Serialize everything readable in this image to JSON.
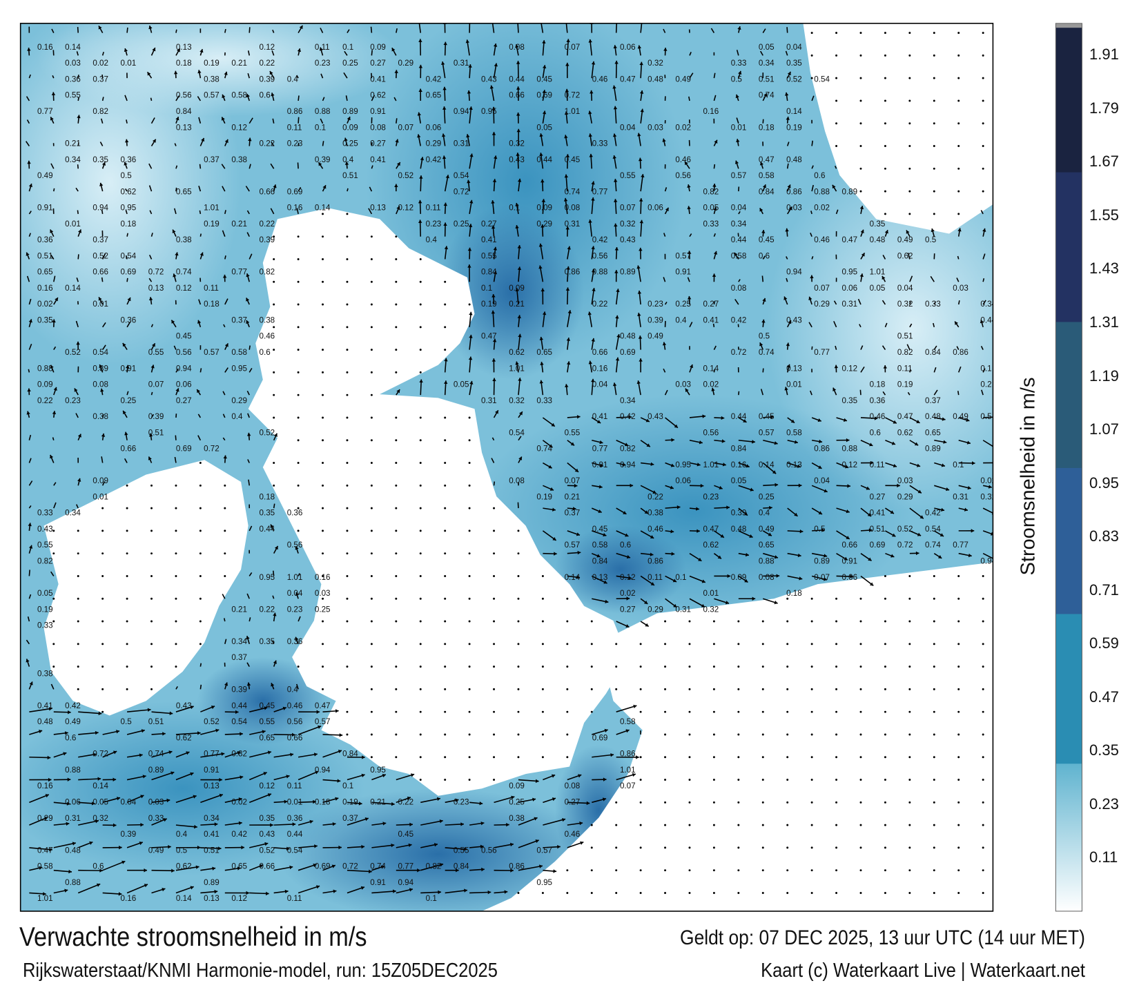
{
  "title": "Verwachte stroomsnelheid in m/s",
  "valid_time": "Geldt op: 07 DEC 2025, 13 uur UTC (14 uur MET)",
  "source": "Rijkswaterstaat/KNMI Harmonie-model, run: 15Z05DEC2025",
  "credit": "Kaart (c) Waterkaart Live | Waterkaart.net",
  "colorbar": {
    "title": "Stroomsnelheid in m/s",
    "ticks": [
      "1.91",
      "1.79",
      "1.67",
      "1.55",
      "1.43",
      "1.31",
      "1.19",
      "1.07",
      "0.95",
      "0.83",
      "0.71",
      "0.59",
      "0.47",
      "0.35",
      "0.23",
      "0.11"
    ],
    "range": [
      0,
      1.97
    ],
    "colors": {
      "low": "#ffffff",
      "light": "#5fb3cf",
      "teal": "#2a8db3",
      "blue": "#2e5f98",
      "slate": "#2a5b78",
      "navy": "#233262",
      "dark": "#1a2340"
    }
  },
  "map": {
    "sea_color": "#7cc0da",
    "land_color": "#ffffff",
    "arrow_color": "#000000",
    "speed_labels": [
      "0.16",
      "0.14",
      "0.13",
      "0.12",
      "0.11",
      "0.1",
      "0.09",
      "0.08",
      "0.07",
      "0.06",
      "0.05",
      "0.04",
      "0.03",
      "0.02",
      "0.01",
      "0.18",
      "0.19",
      "0.21",
      "0.22",
      "0.23",
      "0.25",
      "0.27",
      "0.29",
      "0.31",
      "0.32",
      "0.33",
      "0.34",
      "0.35",
      "0.36",
      "0.37",
      "0.38",
      "0.39",
      "0.4",
      "0.41",
      "0.42",
      "0.43",
      "0.44",
      "0.45",
      "0.46",
      "0.47",
      "0.48",
      "0.49",
      "0.5",
      "0.51",
      "0.52",
      "0.54",
      "0.55",
      "0.56",
      "0.57",
      "0.58",
      "0.6",
      "0.62",
      "0.65",
      "0.66",
      "0.69",
      "0.72",
      "0.74",
      "0.77",
      "0.82",
      "0.84",
      "0.86",
      "0.88",
      "0.89",
      "0.91",
      "0.94",
      "0.95",
      "1.01"
    ]
  }
}
